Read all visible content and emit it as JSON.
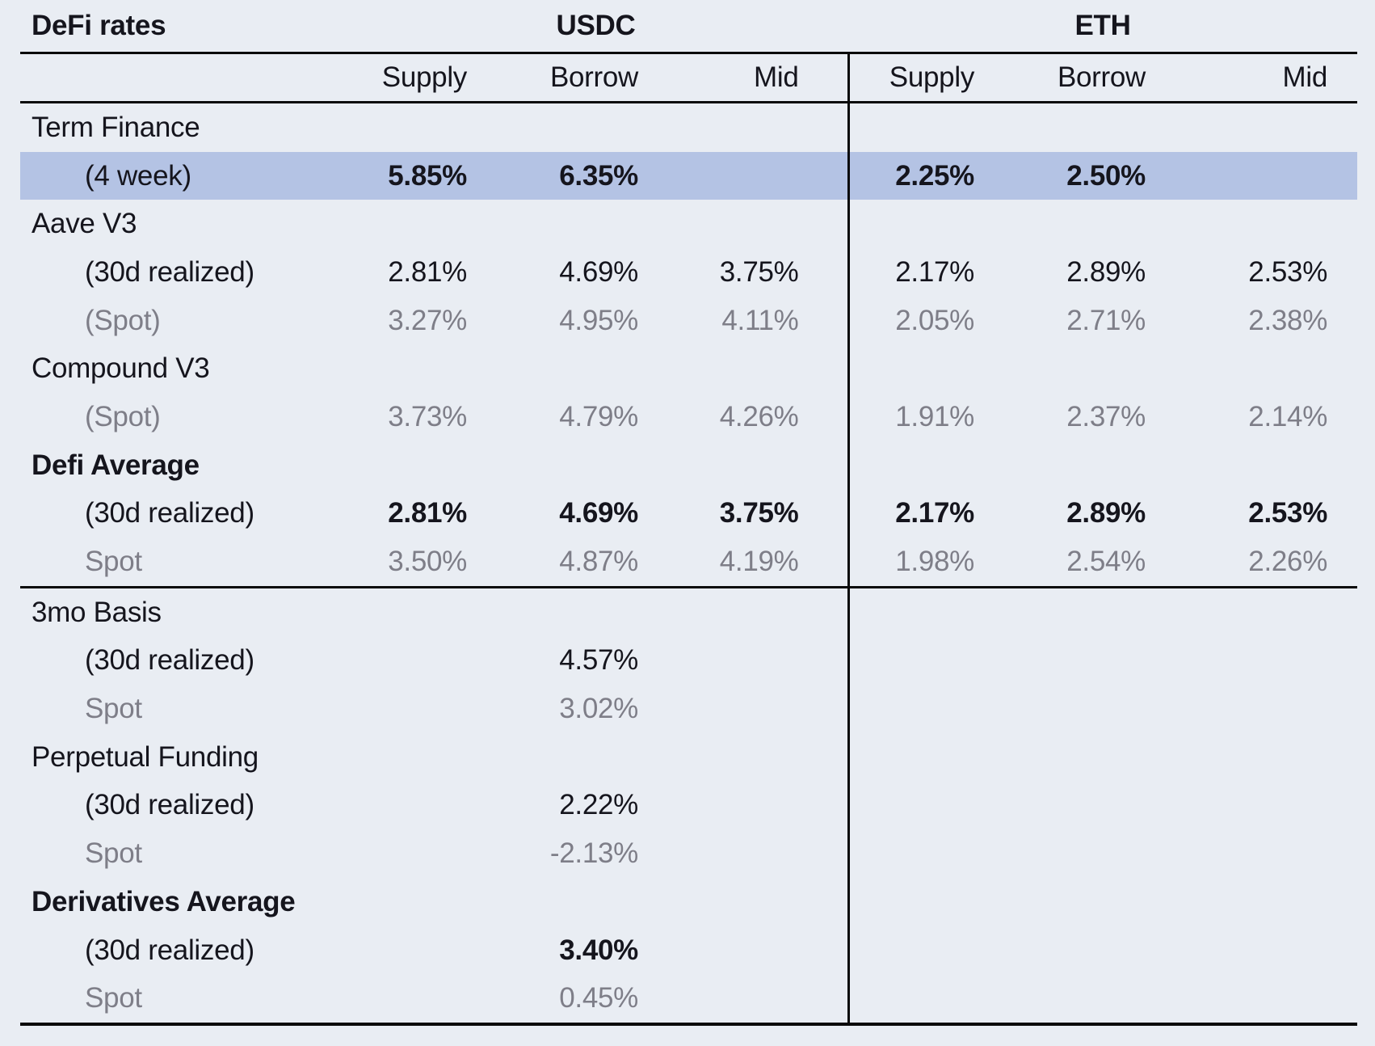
{
  "theme": {
    "background": "#e9edf3",
    "highlight_row": "#b4c3e4",
    "text_dark": "#15151d",
    "text_gray": "#7e7e88",
    "rule_color": "#0a0a0a"
  },
  "chart_data": {
    "type": "table",
    "title": "DeFi rates",
    "column_groups": [
      "USDC",
      "ETH"
    ],
    "columns": [
      "Supply",
      "Borrow",
      "Mid",
      "Supply",
      "Borrow",
      "Mid"
    ],
    "rows": [
      {
        "label": "Term Finance",
        "type": "section",
        "values": [
          "",
          "",
          "",
          "",
          "",
          ""
        ]
      },
      {
        "label": "(4 week)",
        "type": "sub",
        "value_style": "bold",
        "highlight": true,
        "values": [
          "5.85%",
          "6.35%",
          "",
          "2.25%",
          "2.50%",
          ""
        ]
      },
      {
        "label": "Aave V3",
        "type": "section",
        "values": [
          "",
          "",
          "",
          "",
          "",
          ""
        ]
      },
      {
        "label": "(30d realized)",
        "type": "sub",
        "value_style": "dark",
        "values": [
          "2.81%",
          "4.69%",
          "3.75%",
          "2.17%",
          "2.89%",
          "2.53%"
        ]
      },
      {
        "label": "(Spot)",
        "type": "sub",
        "label_style": "gray",
        "value_style": "gray",
        "values": [
          "3.27%",
          "4.95%",
          "4.11%",
          "2.05%",
          "2.71%",
          "2.38%"
        ]
      },
      {
        "label": "Compound V3",
        "type": "section",
        "values": [
          "",
          "",
          "",
          "",
          "",
          ""
        ]
      },
      {
        "label": "(Spot)",
        "type": "sub",
        "label_style": "gray",
        "value_style": "gray",
        "values": [
          "3.73%",
          "4.79%",
          "4.26%",
          "1.91%",
          "2.37%",
          "2.14%"
        ]
      },
      {
        "label": "Defi Average",
        "type": "section",
        "label_style": "bold",
        "values": [
          "",
          "",
          "",
          "",
          "",
          ""
        ]
      },
      {
        "label": "(30d realized)",
        "type": "sub",
        "value_style": "bold",
        "values": [
          "2.81%",
          "4.69%",
          "3.75%",
          "2.17%",
          "2.89%",
          "2.53%"
        ]
      },
      {
        "label": "Spot",
        "type": "sub",
        "label_style": "gray",
        "value_style": "gray",
        "rule_below": true,
        "values": [
          "3.50%",
          "4.87%",
          "4.19%",
          "1.98%",
          "2.54%",
          "2.26%"
        ]
      },
      {
        "label": "3mo Basis",
        "type": "section",
        "values": [
          "",
          "",
          "",
          "",
          "",
          ""
        ]
      },
      {
        "label": "(30d realized)",
        "type": "sub",
        "value_style": "dark",
        "values": [
          "",
          "4.57%",
          "",
          "",
          "",
          ""
        ]
      },
      {
        "label": "Spot",
        "type": "sub",
        "label_style": "gray",
        "value_style": "gray",
        "values": [
          "",
          "3.02%",
          "",
          "",
          "",
          ""
        ]
      },
      {
        "label": "Perpetual Funding",
        "type": "section",
        "values": [
          "",
          "",
          "",
          "",
          "",
          ""
        ]
      },
      {
        "label": "(30d realized)",
        "type": "sub",
        "value_style": "dark",
        "values": [
          "",
          "2.22%",
          "",
          "",
          "",
          ""
        ]
      },
      {
        "label": "Spot",
        "type": "sub",
        "label_style": "gray",
        "value_style": "gray",
        "values": [
          "",
          "-2.13%",
          "",
          "",
          "",
          ""
        ]
      },
      {
        "label": "Derivatives Average",
        "type": "section",
        "label_style": "bold",
        "values": [
          "",
          "",
          "",
          "",
          "",
          ""
        ]
      },
      {
        "label": "(30d realized)",
        "type": "sub",
        "value_style": "bold",
        "values": [
          "",
          "3.40%",
          "",
          "",
          "",
          ""
        ]
      },
      {
        "label": "Spot",
        "type": "sub",
        "label_style": "gray",
        "value_style": "gray",
        "last": true,
        "values": [
          "",
          "0.45%",
          "",
          "",
          "",
          ""
        ]
      }
    ]
  }
}
